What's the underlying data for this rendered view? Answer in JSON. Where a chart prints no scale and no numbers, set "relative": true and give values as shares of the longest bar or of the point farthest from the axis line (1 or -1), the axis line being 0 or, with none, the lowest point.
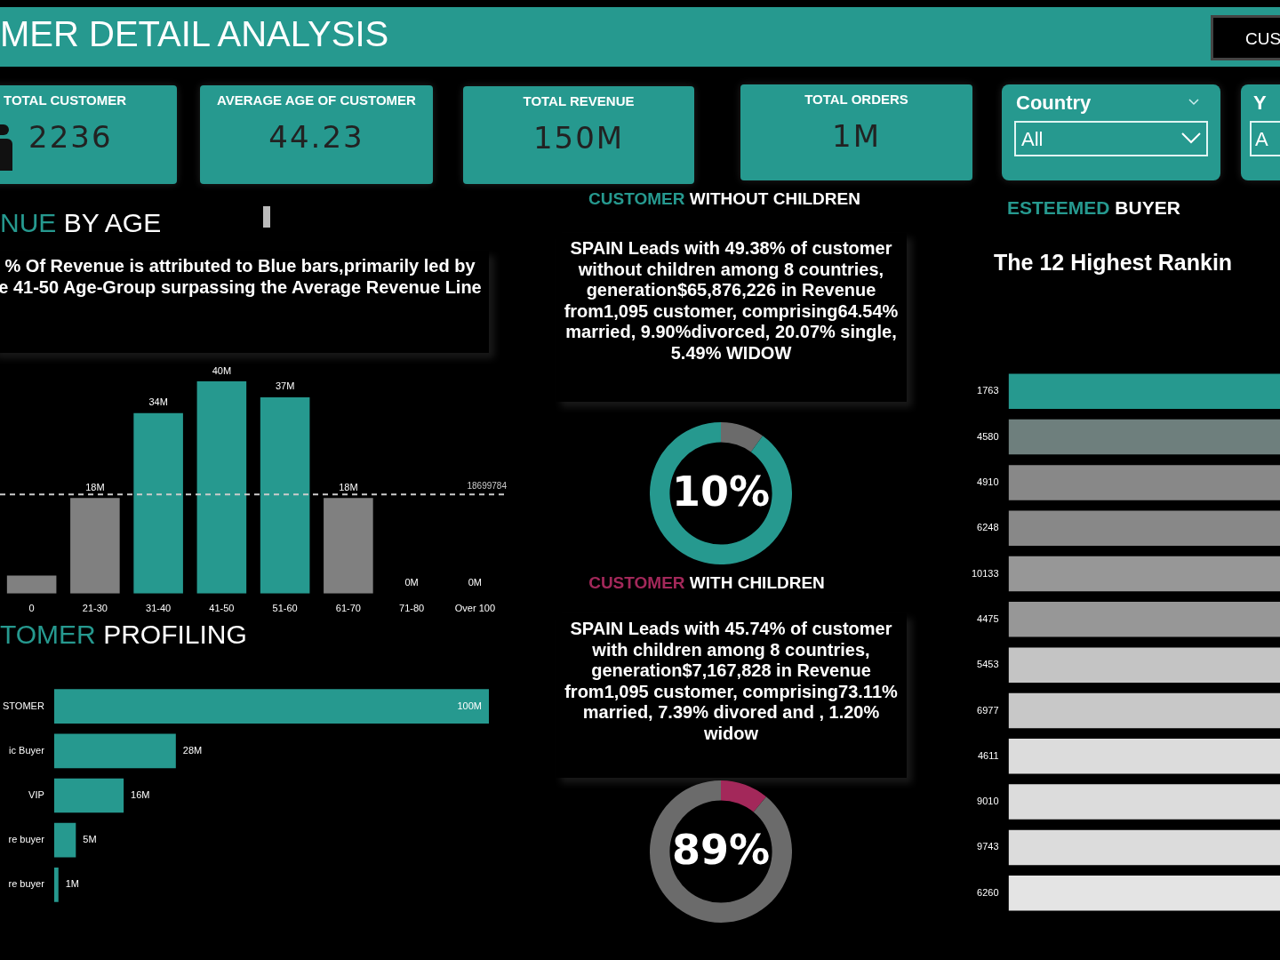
{
  "chart_data": [
    {
      "type": "other",
      "title": "MER DETAIL ANALYSIS",
      "annotations": [
        "TOTAL CUSTOMER",
        "2236",
        "AVERAGE AGE OF CUSTOMER",
        "44.23",
        "TOTAL REVENUE",
        "150M",
        "TOTAL ORDERS",
        "1M",
        "Country",
        "All",
        "Y",
        "A",
        "CUS"
      ]
    },
    {
      "type": "bar",
      "title": "NUE BY AGE",
      "subtitle": "% Of Revenue is attributed to Blue bars,primarily led by e 41-50 Age-Group surpassing the Average Revenue Line",
      "categories": [
        "0",
        "21-30",
        "31-40",
        "41-50",
        "51-60",
        "61-70",
        "71-80",
        "Over 100"
      ],
      "values": [
        3400000,
        18000000,
        34000000,
        40000000,
        37000000,
        18000000,
        0,
        0
      ],
      "value_labels": [
        null,
        "18M",
        "34M",
        "40M",
        "37M",
        "18M",
        "0M",
        "0M"
      ],
      "colors": [
        "#808080",
        "#808080",
        "#26998f",
        "#26998f",
        "#26998f",
        "#808080",
        "#808080",
        "#808080"
      ],
      "ref_lines": [
        {
          "axis": "y",
          "value": 18699784,
          "label": "18699784",
          "color": "#cccccc",
          "line_style": "dashed"
        }
      ]
    },
    {
      "type": "bar",
      "orientation": "horizontal",
      "title": "TOMER PROFILING",
      "categories": [
        "STOMER",
        "ic Buyer",
        "VIP",
        "re buyer",
        "re buyer"
      ],
      "values": [
        100000000,
        28000000,
        16000000,
        5000000,
        1000000
      ],
      "value_labels": [
        "100M",
        "28M",
        "16M",
        "5M",
        "1M"
      ],
      "color": "#26998f"
    },
    {
      "type": "donut",
      "title": "CUSTOMER WITHOUT CHILDREN",
      "subtitle": "SPAIN Leads with 49.38% of customer without children among 8 countries, generation$65,876,226 in Revenue from1,095 customer, comprising64.54% married, 9.90%divorced, 20.07% single, 5.49% WIDOW",
      "categories": [
        null,
        null
      ],
      "values": [
        10,
        90
      ],
      "colors": [
        "#6b6b6b",
        "#26998f"
      ],
      "annotations": [
        "10%"
      ]
    },
    {
      "type": "donut",
      "title": "CUSTOMER WITH CHILDREN",
      "subtitle": "SPAIN Leads with 45.74% of customer with children among 8 countries, generation$7,167,828 in Revenue from1,095 customer, comprising73.11% married, 7.39% divored and , 1.20% widow",
      "categories": [
        null,
        null
      ],
      "values": [
        11,
        89
      ],
      "colors": [
        "#a3285a",
        "#6b6b6b"
      ],
      "annotations": [
        "89%"
      ]
    },
    {
      "type": "bar",
      "orientation": "horizontal",
      "relative": true,
      "title": "ESTEEMED BUYER",
      "subtitle": "The 12 Highest Rankin",
      "categories": [
        "1763",
        "4580",
        "4910",
        "6248",
        "10133",
        "4475",
        "5453",
        "6977",
        "4611",
        "9010",
        "9743",
        "6260"
      ],
      "values": [
        1,
        1,
        1,
        1,
        1,
        1,
        1,
        1,
        1,
        1,
        1,
        1
      ],
      "colors": [
        "#26998f",
        "#6e7f7d",
        "#888888",
        "#888888",
        "#979797",
        "#979797",
        "#c4c4c4",
        "#c8c8c8",
        "#dcdcdc",
        "#dcdcdc",
        "#dcdcdc",
        "#e4e4e4"
      ]
    }
  ]
}
